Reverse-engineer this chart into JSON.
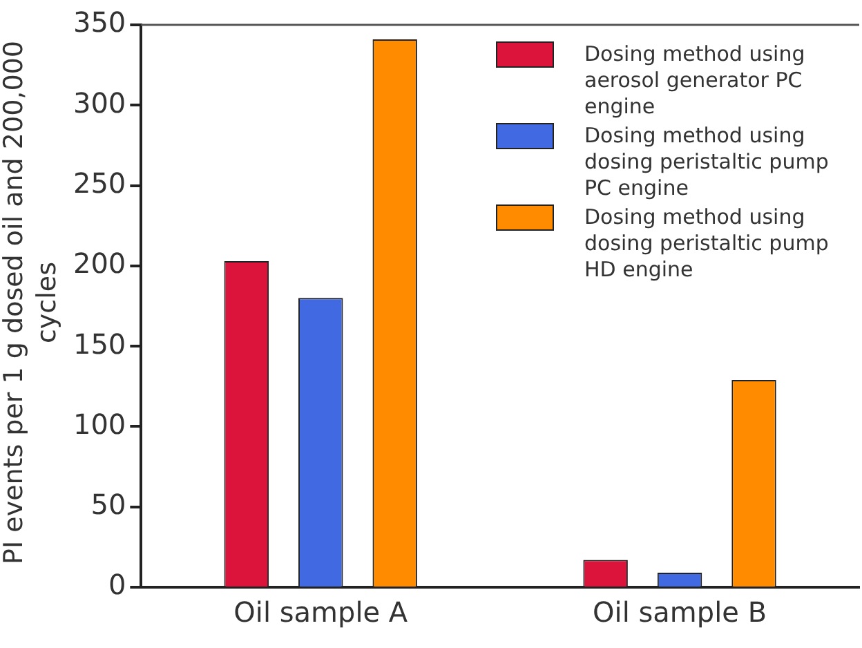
{
  "chart_data": {
    "type": "bar",
    "ylabel": "PI events per 1 g dosed oil and 200,000 cycles",
    "categories": [
      "Oil sample A",
      "Oil sample B"
    ],
    "series": [
      {
        "name": "Dosing method using aerosol generator PC engine",
        "color": "#dc143c",
        "values": [
          203,
          17
        ]
      },
      {
        "name": "Dosing method using dosing peristaltic pump PC engine",
        "color": "#4169e1",
        "values": [
          180,
          9
        ]
      },
      {
        "name": "Dosing method using dosing peristaltic pump HD engine",
        "color": "#ff8c00",
        "values": [
          341,
          129
        ]
      }
    ],
    "ylim": [
      0,
      350
    ],
    "yticks": [
      0,
      50,
      100,
      150,
      200,
      250,
      300,
      350
    ],
    "grid": false,
    "legend": "top right"
  }
}
